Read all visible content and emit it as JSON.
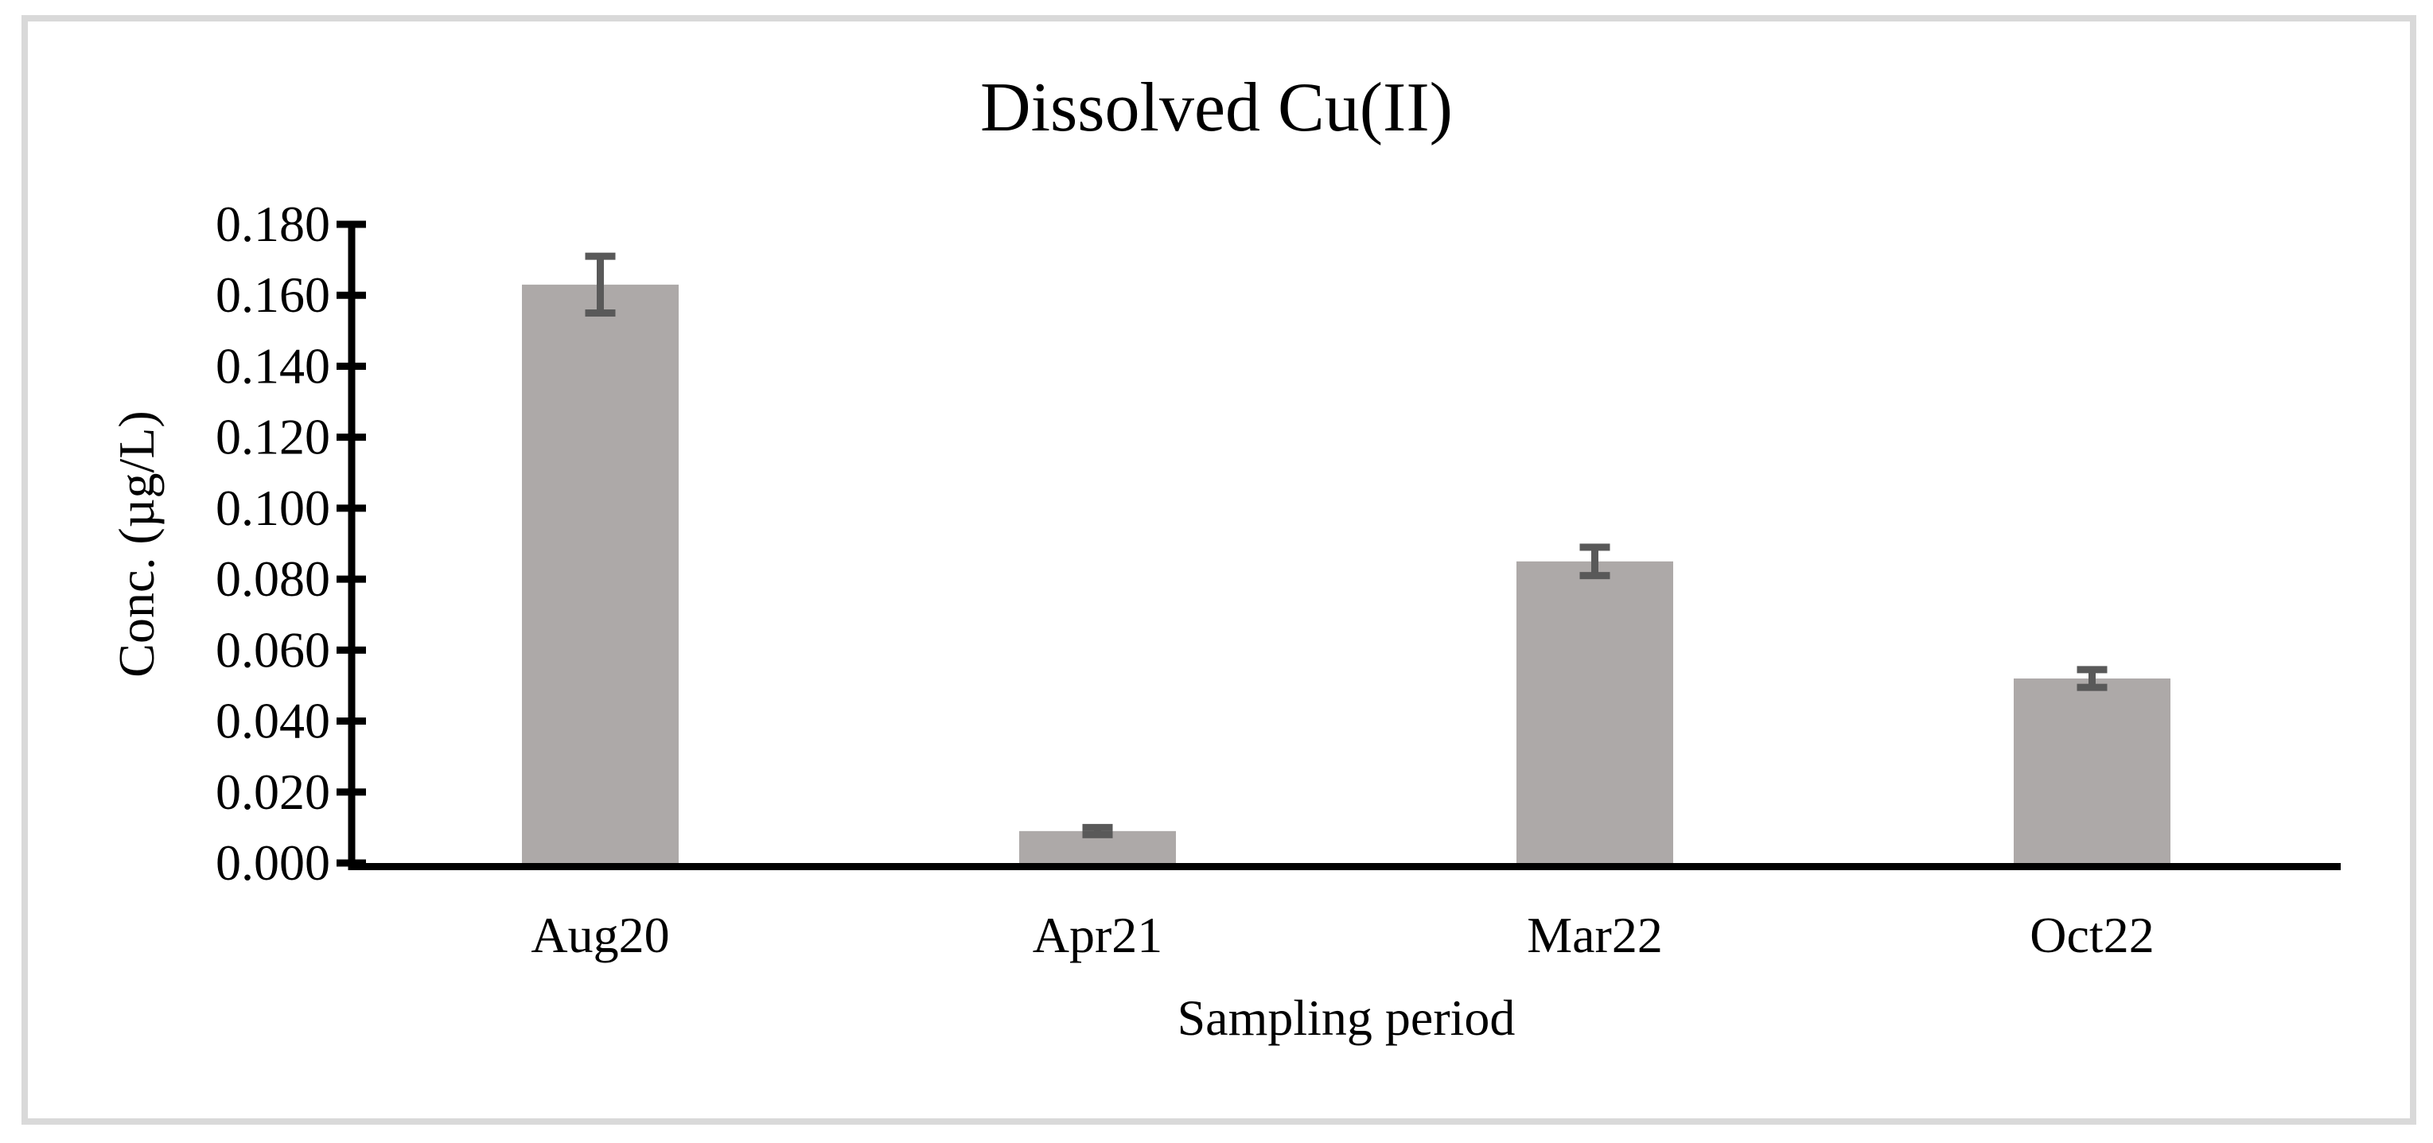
{
  "figure": {
    "background_color": "#FFFFFF",
    "border_color": "#D9D9D9"
  },
  "chart": {
    "title": "Dissolved Cu(II)",
    "ylabel": "Conc. (µg/L)",
    "xlabel": "Sampling period"
  },
  "chart_data": {
    "type": "bar",
    "title": "Dissolved Cu(II)",
    "xlabel": "Sampling period",
    "ylabel": "Conc. (µg/L)",
    "categories": [
      "Aug20",
      "Apr21",
      "Mar22",
      "Oct22"
    ],
    "values": [
      0.163,
      0.009,
      0.085,
      0.052
    ],
    "error_bars": [
      0.008,
      0.001,
      0.004,
      0.0025
    ],
    "ylim": [
      0.0,
      0.18
    ],
    "ytick_step": 0.02,
    "ytick_labels": [
      "0.000",
      "0.020",
      "0.040",
      "0.060",
      "0.080",
      "0.100",
      "0.120",
      "0.140",
      "0.160",
      "0.180"
    ],
    "grid": false,
    "legend": false,
    "bar_color": "#ADA9A8",
    "error_bar_color": "#595959",
    "axis_color": "#000000"
  }
}
